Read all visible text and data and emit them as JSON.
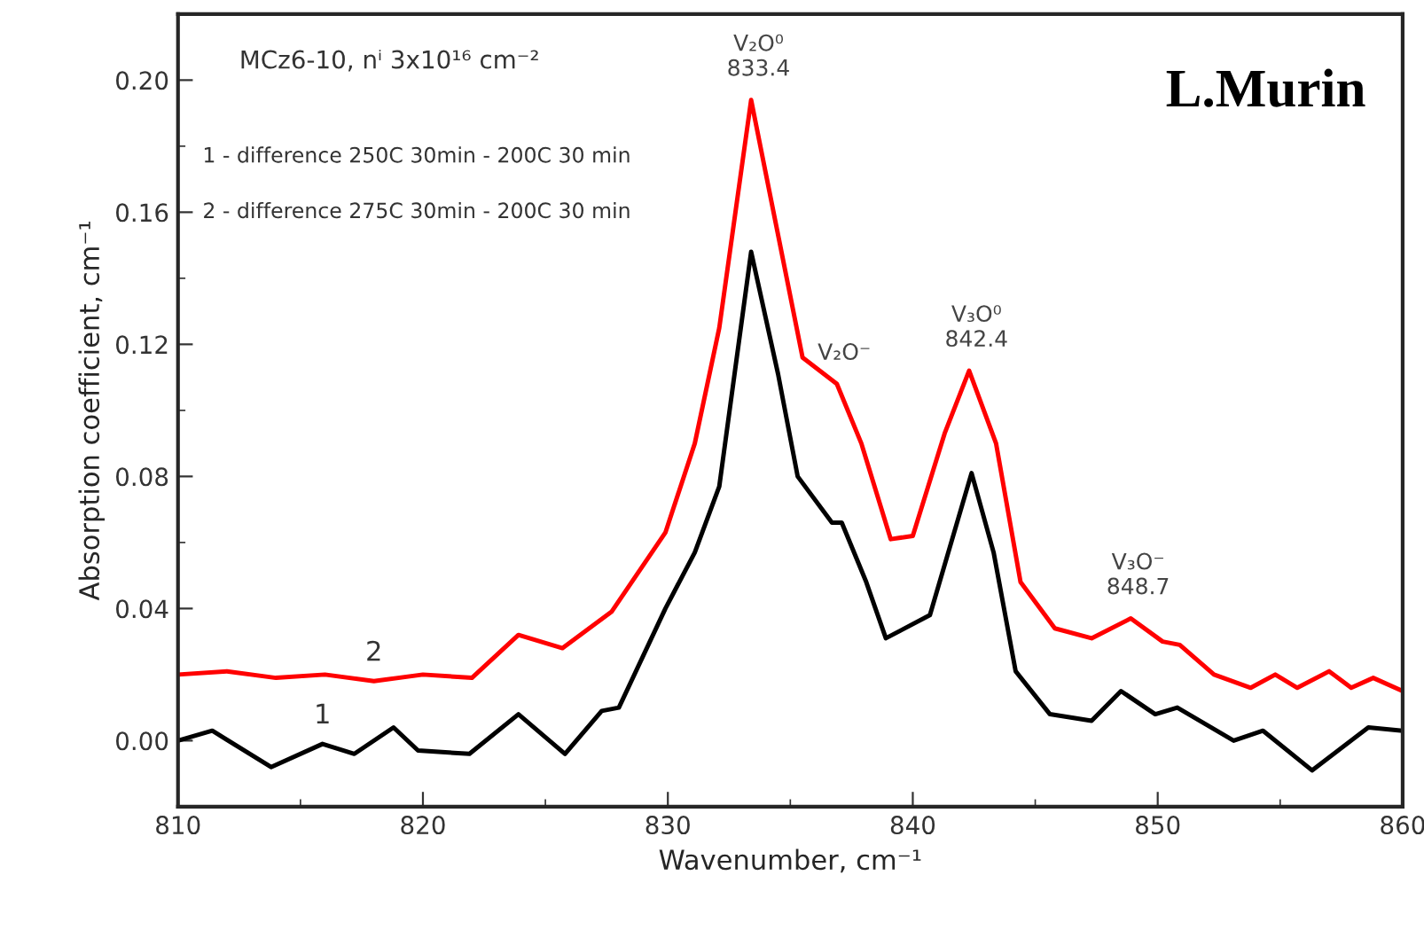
{
  "chart_data": {
    "type": "line",
    "xlabel": "Wavenumber, cm⁻¹",
    "ylabel": "Absorption coefficient, cm⁻¹",
    "xlim": [
      810,
      860
    ],
    "xticks": [
      810,
      820,
      830,
      840,
      850,
      860
    ],
    "ylim": [
      -0.02,
      0.22
    ],
    "yticks": [
      {
        "value": 0,
        "label": "0.00"
      },
      {
        "value": 0.04,
        "label": "0.04"
      },
      {
        "value": 0.08,
        "label": "0.08"
      },
      {
        "value": 0.12,
        "label": "0.12"
      },
      {
        "value": 0.16,
        "label": "0.16"
      },
      {
        "value": 0.2,
        "label": "0.20"
      }
    ],
    "grid": false,
    "legend": false,
    "marker": "none",
    "line_style": "solid",
    "series": [
      {
        "name": "1",
        "color": "#000000",
        "x": [
          810,
          811.4,
          813.8,
          815.9,
          817.2,
          818.8,
          819.8,
          821.9,
          823.9,
          825.8,
          827.3,
          828.0,
          829.9,
          831.1,
          832.1,
          833.4,
          834.5,
          835.3,
          836.7,
          837.1,
          838.1,
          838.9,
          840.7,
          842.4,
          843.3,
          844.2,
          845.6,
          847.3,
          848.5,
          849.9,
          850.8,
          853.1,
          854.3,
          856.3,
          858.6,
          860
        ],
        "values": [
          0.0,
          0.003,
          -0.008,
          -0.001,
          -0.004,
          0.004,
          -0.003,
          -0.004,
          0.008,
          -0.004,
          0.009,
          0.01,
          0.04,
          0.057,
          0.077,
          0.148,
          0.111,
          0.08,
          0.066,
          0.066,
          0.048,
          0.031,
          0.038,
          0.081,
          0.057,
          0.021,
          0.008,
          0.006,
          0.015,
          0.008,
          0.01,
          0.0,
          0.003,
          -0.009,
          0.004,
          0.003
        ]
      },
      {
        "name": "2",
        "color": "#ff0000",
        "x": [
          810,
          812,
          814,
          816,
          818,
          820,
          822,
          823.9,
          825.7,
          827.7,
          829.9,
          831.1,
          832.1,
          833.4,
          835.5,
          836.9,
          837.9,
          839.1,
          840.0,
          841.3,
          842.3,
          843.4,
          844.4,
          845.8,
          847.3,
          848.9,
          850.2,
          850.9,
          852.3,
          853.8,
          854.8,
          855.7,
          857.0,
          857.9,
          858.8,
          860
        ],
        "values": [
          0.02,
          0.021,
          0.019,
          0.02,
          0.018,
          0.02,
          0.019,
          0.032,
          0.028,
          0.039,
          0.063,
          0.09,
          0.125,
          0.194,
          0.116,
          0.108,
          0.09,
          0.061,
          0.062,
          0.093,
          0.112,
          0.09,
          0.048,
          0.034,
          0.031,
          0.037,
          0.03,
          0.029,
          0.02,
          0.016,
          0.02,
          0.016,
          0.021,
          0.016,
          0.019,
          0.015
        ]
      }
    ],
    "annotations": [
      "MCz6-10, nⁱ 3x10¹⁶ cm⁻²",
      "1 - difference 250C 30min - 200C 30 min",
      "2 - difference 275C 30min - 200C 30 min",
      "L.Murin",
      {
        "text": "V₂O⁰\n833.4",
        "x": 833.4,
        "y": 0.194
      },
      {
        "text": "V₂O⁻",
        "x": 836.9,
        "y": 0.108
      },
      {
        "text": "V₃O⁰\n842.4",
        "x": 842.3,
        "y": 0.112
      },
      {
        "text": "V₃O⁻\n848.7",
        "x": 848.9,
        "y": 0.037
      }
    ]
  }
}
